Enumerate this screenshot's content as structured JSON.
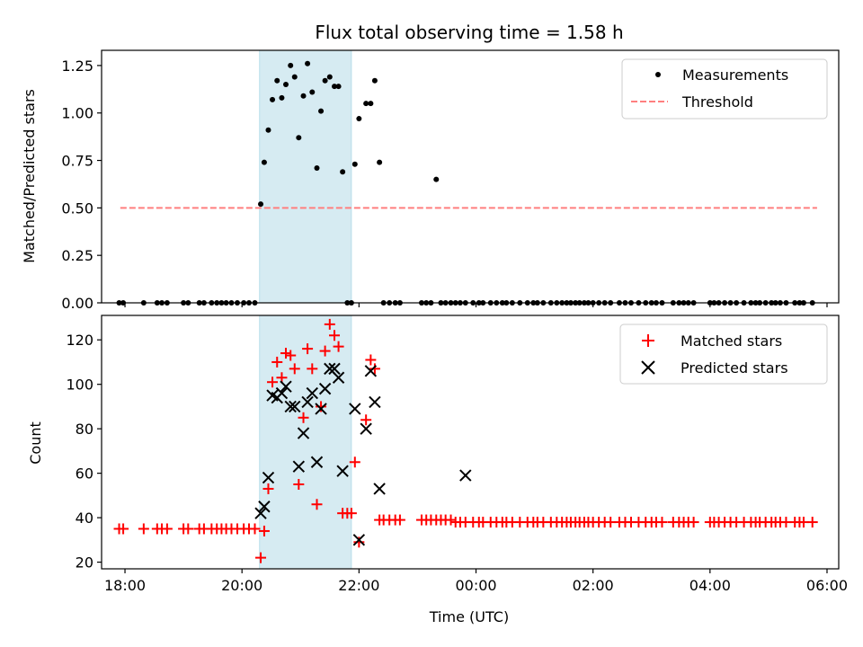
{
  "chart_data": [
    {
      "type": "scatter",
      "title": "Flux total observing time = 1.58 h",
      "xlabel": "",
      "ylabel": "Matched/Predicted stars",
      "xlim": [
        17.6,
        30.2
      ],
      "ylim": [
        0,
        1.33
      ],
      "yticks": [
        0,
        0.25,
        0.5,
        0.75,
        1.0,
        1.25
      ],
      "ytick_labels": [
        "0.00",
        "0.25",
        "0.50",
        "0.75",
        "1.00",
        "1.25"
      ],
      "highlight_span": [
        20.3,
        21.87
      ],
      "legend": {
        "location": "upper right",
        "entries": [
          "Measurements",
          "Threshold"
        ]
      },
      "threshold": {
        "name": "Threshold",
        "y": 0.5,
        "x": [
          17.92,
          29.83
        ],
        "color": "#ff7f7f",
        "style": "dashed"
      },
      "series": [
        {
          "name": "Measurements",
          "color": "#000000",
          "marker": "dot",
          "x": [
            17.9,
            17.97,
            18.32,
            18.55,
            18.63,
            18.72,
            19.0,
            19.08,
            19.27,
            19.35,
            19.48,
            19.57,
            19.65,
            19.73,
            19.82,
            19.92,
            20.03,
            20.12,
            20.22,
            20.32,
            20.38,
            20.45,
            20.52,
            20.6,
            20.68,
            20.75,
            20.83,
            20.9,
            20.97,
            21.05,
            21.12,
            21.2,
            21.28,
            21.35,
            21.42,
            21.5,
            21.58,
            21.65,
            21.72,
            21.8,
            21.87,
            21.93,
            22.0,
            22.12,
            22.2,
            22.27,
            22.35,
            22.42,
            22.52,
            22.62,
            22.7,
            23.07,
            23.15,
            23.23,
            23.32,
            23.4,
            23.48,
            23.57,
            23.65,
            23.73,
            23.82,
            23.95,
            24.05,
            24.12,
            24.25,
            24.35,
            24.45,
            24.52,
            24.62,
            24.75,
            24.88,
            24.98,
            25.05,
            25.15,
            25.28,
            25.38,
            25.47,
            25.55,
            25.62,
            25.7,
            25.77,
            25.85,
            25.92,
            26.0,
            26.1,
            26.2,
            26.3,
            26.45,
            26.55,
            26.65,
            26.78,
            26.9,
            27.0,
            27.08,
            27.18,
            27.37,
            27.47,
            27.55,
            27.63,
            27.72,
            28.0,
            28.07,
            28.15,
            28.25,
            28.35,
            28.45,
            28.58,
            28.7,
            28.78,
            28.85,
            28.95,
            29.05,
            29.12,
            29.2,
            29.3,
            29.45,
            29.53,
            29.6,
            29.75
          ],
          "y": [
            0,
            0,
            0,
            0,
            0,
            0,
            0,
            0,
            0,
            0,
            0,
            0,
            0,
            0,
            0,
            0,
            0,
            0,
            0,
            0.52,
            0.74,
            0.91,
            1.07,
            1.17,
            1.08,
            1.15,
            1.25,
            1.19,
            0.87,
            1.09,
            1.26,
            1.11,
            0.71,
            1.01,
            1.17,
            1.19,
            1.14,
            1.14,
            0.69,
            0,
            0,
            0.73,
            0.97,
            1.05,
            1.05,
            1.17,
            0.74,
            0,
            0,
            0,
            0,
            0,
            0,
            0,
            0.65,
            0,
            0,
            0,
            0,
            0,
            0,
            0,
            0,
            0,
            0,
            0,
            0,
            0,
            0,
            0,
            0,
            0,
            0,
            0,
            0,
            0,
            0,
            0,
            0,
            0,
            0,
            0,
            0,
            0,
            0,
            0,
            0,
            0,
            0,
            0,
            0,
            0,
            0,
            0,
            0,
            0,
            0,
            0,
            0,
            0,
            0,
            0,
            0,
            0,
            0,
            0,
            0,
            0,
            0,
            0,
            0,
            0,
            0,
            0,
            0,
            0,
            0,
            0,
            0
          ]
        }
      ]
    },
    {
      "type": "scatter",
      "title": "",
      "xlabel": "Time (UTC)",
      "ylabel": "Count",
      "xlim": [
        17.6,
        30.2
      ],
      "ylim": [
        17,
        131
      ],
      "yticks": [
        20,
        40,
        60,
        80,
        100,
        120
      ],
      "ytick_labels": [
        "20",
        "40",
        "60",
        "80",
        "100",
        "120"
      ],
      "xticks": [
        18,
        20,
        22,
        24,
        26,
        28,
        30
      ],
      "xtick_labels": [
        "18:00",
        "20:00",
        "22:00",
        "00:00",
        "02:00",
        "04:00",
        "06:00"
      ],
      "highlight_span": [
        20.3,
        21.87
      ],
      "legend": {
        "location": "upper right",
        "entries": [
          "Matched stars",
          "Predicted stars"
        ]
      },
      "series": [
        {
          "name": "Matched stars",
          "color": "#ff0000",
          "marker": "plus",
          "x": [
            17.9,
            17.97,
            18.32,
            18.55,
            18.63,
            18.72,
            19.0,
            19.08,
            19.27,
            19.35,
            19.48,
            19.57,
            19.65,
            19.73,
            19.82,
            19.92,
            20.03,
            20.12,
            20.22,
            20.32,
            20.38,
            20.45,
            20.52,
            20.6,
            20.68,
            20.75,
            20.83,
            20.9,
            20.97,
            21.05,
            21.12,
            21.2,
            21.28,
            21.35,
            21.42,
            21.5,
            21.58,
            21.65,
            21.72,
            21.8,
            21.87,
            21.93,
            22.0,
            22.12,
            22.2,
            22.27,
            22.35,
            22.42,
            22.52,
            22.62,
            22.7,
            23.07,
            23.15,
            23.23,
            23.32,
            23.4,
            23.48,
            23.57,
            23.65,
            23.73,
            23.82,
            23.95,
            24.05,
            24.12,
            24.25,
            24.35,
            24.45,
            24.52,
            24.62,
            24.75,
            24.88,
            24.98,
            25.05,
            25.15,
            25.28,
            25.38,
            25.47,
            25.55,
            25.62,
            25.7,
            25.77,
            25.85,
            25.92,
            26.0,
            26.1,
            26.2,
            26.3,
            26.45,
            26.55,
            26.65,
            26.78,
            26.9,
            27.0,
            27.08,
            27.18,
            27.37,
            27.47,
            27.55,
            27.63,
            27.72,
            28.0,
            28.07,
            28.15,
            28.25,
            28.35,
            28.45,
            28.58,
            28.7,
            28.78,
            28.85,
            28.95,
            29.05,
            29.12,
            29.2,
            29.3,
            29.45,
            29.53,
            29.6,
            29.75
          ],
          "y": [
            35,
            35,
            35,
            35,
            35,
            35,
            35,
            35,
            35,
            35,
            35,
            35,
            35,
            35,
            35,
            35,
            35,
            35,
            35,
            22,
            34,
            53,
            101,
            110,
            103,
            114,
            113,
            107,
            55,
            85,
            116,
            107,
            46,
            90,
            115,
            127,
            122,
            117,
            42,
            42,
            42,
            65,
            29,
            84,
            111,
            107,
            39,
            39,
            39,
            39,
            39,
            39,
            39,
            39,
            39,
            39,
            39,
            39,
            38,
            38,
            38,
            38,
            38,
            38,
            38,
            38,
            38,
            38,
            38,
            38,
            38,
            38,
            38,
            38,
            38,
            38,
            38,
            38,
            38,
            38,
            38,
            38,
            38,
            38,
            38,
            38,
            38,
            38,
            38,
            38,
            38,
            38,
            38,
            38,
            38,
            38,
            38,
            38,
            38,
            38,
            38,
            38,
            38,
            38,
            38,
            38,
            38,
            38,
            38,
            38,
            38,
            38,
            38,
            38,
            38,
            38,
            38,
            38,
            38
          ]
        },
        {
          "name": "Predicted stars",
          "color": "#000000",
          "marker": "x",
          "x": [
            20.32,
            20.38,
            20.45,
            20.52,
            20.6,
            20.68,
            20.75,
            20.83,
            20.9,
            20.97,
            21.05,
            21.12,
            21.2,
            21.28,
            21.35,
            21.42,
            21.5,
            21.58,
            21.65,
            21.72,
            21.93,
            22.0,
            22.12,
            22.2,
            22.27,
            22.35,
            23.82
          ],
          "y": [
            42,
            45,
            58,
            95,
            94,
            96,
            99,
            90,
            90,
            63,
            78,
            92,
            96,
            65,
            89,
            98,
            107,
            107,
            103,
            61,
            89,
            30,
            80,
            106,
            92,
            53,
            59
          ]
        }
      ]
    }
  ]
}
